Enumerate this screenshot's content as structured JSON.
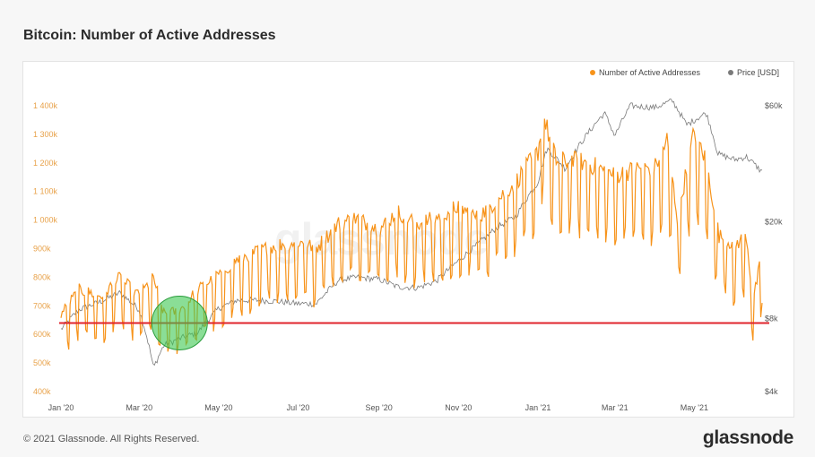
{
  "page": {
    "title": "Bitcoin: Number of Active Addresses",
    "copyright": "© 2021 Glassnode. All Rights Reserved.",
    "brand": "glassnode",
    "watermark": "glassnode"
  },
  "colors": {
    "active_addresses": "#f7931a",
    "price": "#7a7a7a",
    "threshold_line": "#e0242c",
    "highlight_fill": "#3cc850",
    "highlight_stroke": "#2a9c3c",
    "left_tick_text": "#e8a24a",
    "right_tick_text": "#555555"
  },
  "chart_data": {
    "type": "line",
    "legend_position": "top-right",
    "grid": false,
    "x_axis": {
      "ticks": [
        "Jan '20",
        "Mar '20",
        "May '20",
        "Jul '20",
        "Sep '20",
        "Nov '20",
        "Jan '21",
        "Mar '21",
        "May '21"
      ],
      "range": [
        "2020-01-01",
        "2021-06-22"
      ]
    },
    "y_axis_left": {
      "ticks": [
        "400k",
        "500k",
        "600k",
        "700k",
        "800k",
        "900k",
        "1 000k",
        "1 100k",
        "1 200k",
        "1 300k",
        "1 400k"
      ],
      "range": [
        400000,
        1400000
      ]
    },
    "y_axis_right": {
      "scale": "log",
      "ticks": [
        "$4k",
        "$8k",
        "$20k",
        "$60k"
      ],
      "range": [
        4000,
        60000
      ]
    },
    "series": [
      {
        "name": "Number of Active Addresses",
        "axis": "left",
        "x": [
          "2020-01-01",
          "2020-01-15",
          "2020-02-01",
          "2020-02-15",
          "2020-03-01",
          "2020-03-12",
          "2020-03-20",
          "2020-04-01",
          "2020-04-15",
          "2020-05-01",
          "2020-05-15",
          "2020-06-01",
          "2020-06-15",
          "2020-07-01",
          "2020-07-15",
          "2020-08-01",
          "2020-08-15",
          "2020-09-01",
          "2020-09-15",
          "2020-10-01",
          "2020-10-15",
          "2020-11-01",
          "2020-11-15",
          "2020-12-01",
          "2020-12-15",
          "2021-01-01",
          "2021-01-05",
          "2021-01-15",
          "2021-02-01",
          "2021-02-15",
          "2021-03-01",
          "2021-03-15",
          "2021-04-01",
          "2021-04-10",
          "2021-04-18",
          "2021-05-01",
          "2021-05-10",
          "2021-05-20",
          "2021-06-01",
          "2021-06-10",
          "2021-06-15",
          "2021-06-22"
        ],
        "values": [
          640000,
          720000,
          700000,
          760000,
          700000,
          760000,
          640000,
          650000,
          720000,
          770000,
          820000,
          850000,
          870000,
          880000,
          860000,
          940000,
          960000,
          920000,
          980000,
          940000,
          960000,
          1000000,
          960000,
          1020000,
          1080000,
          1180000,
          1300000,
          1150000,
          1150000,
          1130000,
          1100000,
          1120000,
          1130000,
          1220000,
          960000,
          1250000,
          1150000,
          900000,
          870000,
          900000,
          680000,
          840000
        ]
      },
      {
        "name": "Price [USD]",
        "axis": "right",
        "x": [
          "2020-01-01",
          "2020-01-15",
          "2020-02-01",
          "2020-02-15",
          "2020-03-01",
          "2020-03-12",
          "2020-03-20",
          "2020-04-01",
          "2020-04-15",
          "2020-05-01",
          "2020-05-15",
          "2020-06-01",
          "2020-06-15",
          "2020-07-01",
          "2020-07-15",
          "2020-08-01",
          "2020-08-15",
          "2020-09-01",
          "2020-09-15",
          "2020-10-01",
          "2020-10-15",
          "2020-11-01",
          "2020-11-15",
          "2020-12-01",
          "2020-12-15",
          "2021-01-01",
          "2021-01-08",
          "2021-01-22",
          "2021-02-08",
          "2021-02-21",
          "2021-03-01",
          "2021-03-13",
          "2021-04-01",
          "2021-04-14",
          "2021-04-25",
          "2021-05-10",
          "2021-05-19",
          "2021-06-01",
          "2021-06-10",
          "2021-06-22"
        ],
        "values": [
          7200,
          8700,
          9400,
          10200,
          8700,
          5000,
          6200,
          6600,
          7000,
          8800,
          9500,
          9500,
          9400,
          9200,
          9200,
          11500,
          11800,
          11600,
          10800,
          10700,
          11400,
          13800,
          16000,
          19000,
          21000,
          29000,
          40000,
          33000,
          46000,
          56000,
          45000,
          60000,
          59000,
          63000,
          50000,
          56000,
          38000,
          36000,
          37000,
          32000
        ]
      }
    ],
    "annotations": {
      "horizontal_line_value": 640000,
      "highlight_x": "2020-04-01",
      "highlight_y": 640000
    }
  }
}
